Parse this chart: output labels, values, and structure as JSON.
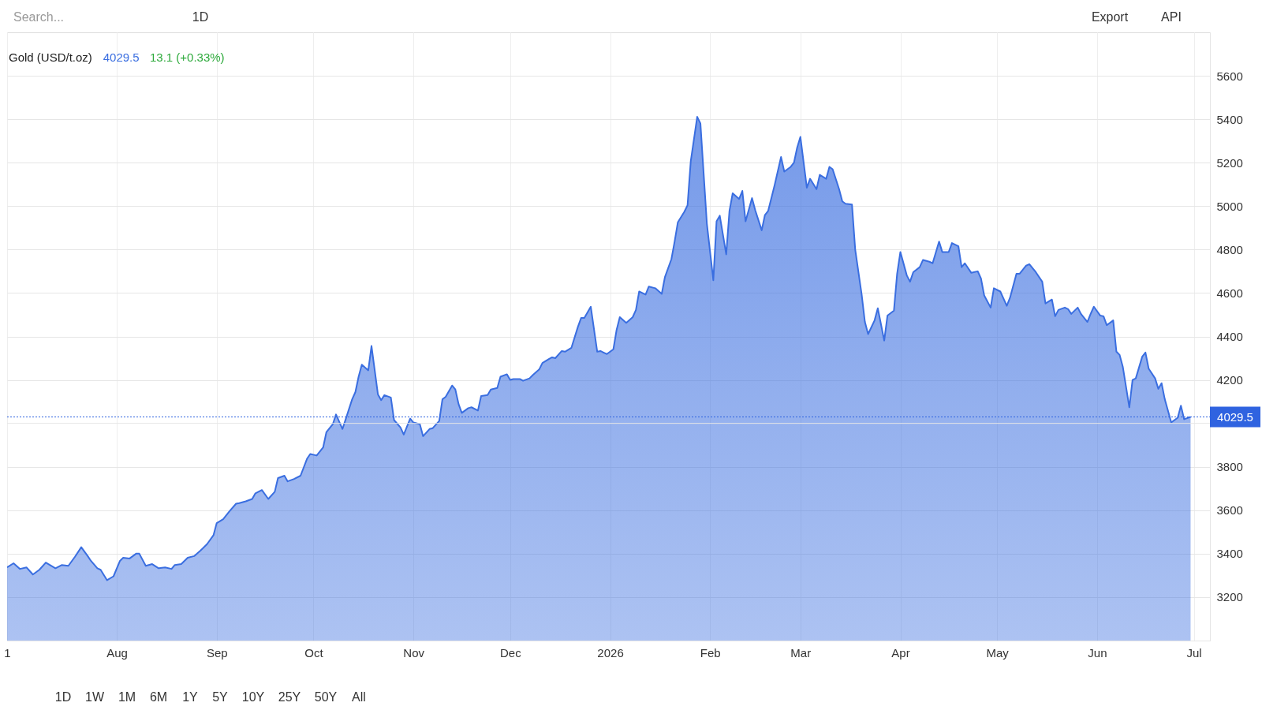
{
  "chart_data": {
    "type": "area",
    "title": "Gold (USD/t.oz)",
    "annotations": [
      "4029.5",
      "13.1 (+0.33%)",
      "Search...",
      "1D",
      "Export",
      "API",
      "1D",
      "1W",
      "1M",
      "6M",
      "1Y",
      "5Y",
      "10Y",
      "25Y",
      "50Y",
      "All"
    ],
    "x": [
      "2025-06-28",
      "2025-06-30",
      "2025-07-02",
      "2025-07-04",
      "2025-07-06",
      "2025-07-08",
      "2025-07-10",
      "2025-07-13",
      "2025-07-15",
      "2025-07-17",
      "2025-07-19",
      "2025-07-21",
      "2025-07-23",
      "2025-07-24",
      "2025-07-26",
      "2025-07-27",
      "2025-07-29",
      "2025-07-31",
      "2025-08-02",
      "2025-08-03",
      "2025-08-05",
      "2025-08-07",
      "2025-08-08",
      "2025-08-10",
      "2025-08-12",
      "2025-08-14",
      "2025-08-16",
      "2025-08-18",
      "2025-08-19",
      "2025-08-21",
      "2025-08-23",
      "2025-08-25",
      "2025-08-27",
      "2025-08-29",
      "2025-08-31",
      "2025-09-01",
      "2025-09-03",
      "2025-09-05",
      "2025-09-07",
      "2025-09-08",
      "2025-09-10",
      "2025-09-12",
      "2025-09-13",
      "2025-09-15",
      "2025-09-17",
      "2025-09-19",
      "2025-09-20",
      "2025-09-22",
      "2025-09-23",
      "2025-09-25",
      "2025-09-27",
      "2025-09-29",
      "2025-09-30",
      "2025-10-02",
      "2025-10-04",
      "2025-10-05",
      "2025-10-07",
      "2025-10-08",
      "2025-10-10",
      "2025-10-11",
      "2025-10-13",
      "2025-10-14",
      "2025-10-15",
      "2025-10-16",
      "2025-10-18",
      "2025-10-19",
      "2025-10-21",
      "2025-10-22",
      "2025-10-23",
      "2025-10-25",
      "2025-10-26",
      "2025-10-28",
      "2025-10-29",
      "2025-10-31",
      "2025-11-01",
      "2025-11-03",
      "2025-11-04",
      "2025-11-06",
      "2025-11-07",
      "2025-11-09",
      "2025-11-10",
      "2025-11-11",
      "2025-11-13",
      "2025-11-14",
      "2025-11-15",
      "2025-11-16",
      "2025-11-18",
      "2025-11-19",
      "2025-11-21",
      "2025-11-22",
      "2025-11-24",
      "2025-11-25",
      "2025-11-27",
      "2025-11-28",
      "2025-11-30",
      "2025-12-01",
      "2025-12-02",
      "2025-12-04",
      "2025-12-05",
      "2025-12-07",
      "2025-12-08",
      "2025-12-10",
      "2025-12-11",
      "2025-12-13",
      "2025-12-14",
      "2025-12-15",
      "2025-12-17",
      "2025-12-18",
      "2025-12-20",
      "2025-12-22",
      "2025-12-23",
      "2025-12-24",
      "2025-12-26",
      "2025-12-28",
      "2025-12-29",
      "2025-12-31",
      "2026-01-02",
      "2026-01-03",
      "2026-01-04",
      "2026-01-06",
      "2026-01-08",
      "2026-01-09",
      "2026-01-10",
      "2026-01-12",
      "2026-01-13",
      "2026-01-15",
      "2026-01-17",
      "2026-01-18",
      "2026-01-20",
      "2026-01-21",
      "2026-01-22",
      "2026-01-24",
      "2026-01-25",
      "2026-01-26",
      "2026-01-28",
      "2026-01-29",
      "2026-01-31",
      "2026-02-02",
      "2026-02-03",
      "2026-02-04",
      "2026-02-06",
      "2026-02-07",
      "2026-02-08",
      "2026-02-10",
      "2026-02-11",
      "2026-02-12",
      "2026-02-14",
      "2026-02-15",
      "2026-02-17",
      "2026-02-18",
      "2026-02-19",
      "2026-02-21",
      "2026-02-23",
      "2026-02-24",
      "2026-02-26",
      "2026-02-27",
      "2026-02-28",
      "2026-03-01",
      "2026-03-03",
      "2026-03-04",
      "2026-03-06",
      "2026-03-07",
      "2026-03-09",
      "2026-03-10",
      "2026-03-11",
      "2026-03-13",
      "2026-03-14",
      "2026-03-15",
      "2026-03-17",
      "2026-03-18",
      "2026-03-20",
      "2026-03-21",
      "2026-03-22",
      "2026-03-24",
      "2026-03-25",
      "2026-03-27",
      "2026-03-28",
      "2026-03-30",
      "2026-03-31",
      "2026-04-01",
      "2026-04-03",
      "2026-04-04",
      "2026-04-05",
      "2026-04-07",
      "2026-04-08",
      "2026-04-10",
      "2026-04-11",
      "2026-04-13",
      "2026-04-14",
      "2026-04-16",
      "2026-04-17",
      "2026-04-19",
      "2026-04-20",
      "2026-04-21",
      "2026-04-23",
      "2026-04-25",
      "2026-04-26",
      "2026-04-27",
      "2026-04-29",
      "2026-04-30",
      "2026-05-02",
      "2026-05-04",
      "2026-05-05",
      "2026-05-07",
      "2026-05-08",
      "2026-05-10",
      "2026-05-11",
      "2026-05-13",
      "2026-05-15",
      "2026-05-16",
      "2026-05-18",
      "2026-05-19",
      "2026-05-20",
      "2026-05-22",
      "2026-05-23",
      "2026-05-24",
      "2026-05-26",
      "2026-05-27",
      "2026-05-29",
      "2026-05-30",
      "2026-05-31",
      "2026-06-02",
      "2026-06-03",
      "2026-06-04",
      "2026-06-06",
      "2026-06-07",
      "2026-06-08",
      "2026-06-09",
      "2026-06-11",
      "2026-06-12",
      "2026-06-13",
      "2026-06-15",
      "2026-06-16",
      "2026-06-17",
      "2026-06-19",
      "2026-06-20",
      "2026-06-21",
      "2026-06-22",
      "2026-06-24",
      "2026-06-26",
      "2026-06-27",
      "2026-06-28",
      "2026-06-30"
    ],
    "series": [
      {
        "color": "#3a6ee0",
        "values": [
          3337,
          3356,
          3330,
          3337,
          3304,
          3326,
          3359,
          3333,
          3348,
          3344,
          3385,
          3430,
          3389,
          3367,
          3333,
          3326,
          3278,
          3296,
          3367,
          3381,
          3378,
          3400,
          3400,
          3344,
          3352,
          3333,
          3337,
          3330,
          3348,
          3352,
          3381,
          3389,
          3415,
          3444,
          3485,
          3541,
          3559,
          3596,
          3630,
          3633,
          3641,
          3652,
          3678,
          3693,
          3652,
          3685,
          3748,
          3759,
          3733,
          3744,
          3759,
          3837,
          3859,
          3852,
          3889,
          3959,
          3996,
          4041,
          3974,
          4019,
          4111,
          4144,
          4215,
          4270,
          4244,
          4356,
          4133,
          4107,
          4130,
          4119,
          4015,
          3981,
          3948,
          4022,
          4004,
          3996,
          3941,
          3974,
          3978,
          4011,
          4111,
          4122,
          4174,
          4156,
          4089,
          4048,
          4070,
          4074,
          4059,
          4126,
          4130,
          4156,
          4163,
          4215,
          4226,
          4200,
          4204,
          4204,
          4196,
          4207,
          4222,
          4248,
          4278,
          4296,
          4304,
          4300,
          4333,
          4330,
          4348,
          4444,
          4485,
          4485,
          4537,
          4330,
          4333,
          4319,
          4341,
          4430,
          4489,
          4463,
          4489,
          4522,
          4607,
          4593,
          4630,
          4622,
          4596,
          4674,
          4756,
          4837,
          4926,
          4974,
          5004,
          5207,
          5411,
          5381,
          4919,
          4659,
          4930,
          4956,
          4778,
          4978,
          5059,
          5033,
          5070,
          4930,
          5037,
          4981,
          4889,
          4959,
          4978,
          5096,
          5226,
          5159,
          5181,
          5200,
          5270,
          5319,
          5085,
          5126,
          5078,
          5144,
          5126,
          5181,
          5170,
          5078,
          5022,
          5011,
          5007,
          4800,
          4593,
          4467,
          4411,
          4474,
          4530,
          4381,
          4496,
          4519,
          4689,
          4789,
          4681,
          4652,
          4696,
          4719,
          4752,
          4744,
          4737,
          4837,
          4789,
          4789,
          4830,
          4815,
          4719,
          4737,
          4693,
          4700,
          4667,
          4589,
          4533,
          4622,
          4607,
          4541,
          4578,
          4689,
          4689,
          4726,
          4733,
          4696,
          4652,
          4552,
          4570,
          4493,
          4522,
          4533,
          4526,
          4504,
          4533,
          4504,
          4467,
          4504,
          4537,
          4496,
          4493,
          4452,
          4474,
          4330,
          4315,
          4259,
          4074,
          4200,
          4207,
          4307,
          4326,
          4252,
          4207,
          4159,
          4185,
          4111,
          4004,
          4026,
          4081,
          4019,
          4029.5
        ]
      }
    ],
    "xlim": [
      "2025-06-28",
      "2026-07-06"
    ],
    "xticks": [
      {
        "value": "2025-06-28",
        "label": "1"
      },
      {
        "value": "2025-08-01",
        "label": "Aug"
      },
      {
        "value": "2025-09-01",
        "label": "Sep"
      },
      {
        "value": "2025-10-01",
        "label": "Oct"
      },
      {
        "value": "2025-11-01",
        "label": "Nov"
      },
      {
        "value": "2025-12-01",
        "label": "Dec"
      },
      {
        "value": "2026-01-01",
        "label": "2026"
      },
      {
        "value": "2026-02-01",
        "label": "Feb"
      },
      {
        "value": "2026-03-01",
        "label": "Mar"
      },
      {
        "value": "2026-04-01",
        "label": "Apr"
      },
      {
        "value": "2026-05-01",
        "label": "May"
      },
      {
        "value": "2026-06-01",
        "label": "Jun"
      },
      {
        "value": "2026-07-01",
        "label": "Jul"
      }
    ],
    "ylim": [
      3000,
      5800
    ],
    "yticks": [
      3200,
      3400,
      3600,
      3800,
      {
        "value": 4000,
        "label": null
      },
      4200,
      4400,
      4600,
      4800,
      5000,
      5200,
      5400,
      5600
    ],
    "ref_lines": [
      {
        "axis": "y",
        "value": 4029.5,
        "label": "4029.5",
        "color": "#2f63e0",
        "line_style": "dotted"
      }
    ],
    "grid": true
  }
}
